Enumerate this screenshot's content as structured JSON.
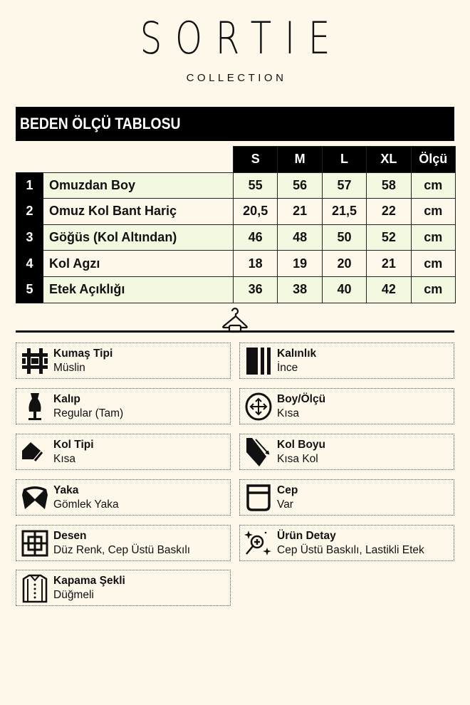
{
  "brand": {
    "name": "SORTIE",
    "sub": "COLLECTION"
  },
  "title": "BEDEN ÖLÇÜ TABLOSU",
  "table": {
    "headers": [
      "S",
      "M",
      "L",
      "XL",
      "Ölçü"
    ],
    "rows": [
      {
        "no": "1",
        "label": "Omuzdan Boy",
        "values": [
          "55",
          "56",
          "57",
          "58"
        ],
        "unit": "cm"
      },
      {
        "no": "2",
        "label": "Omuz Kol Bant Hariç",
        "values": [
          "20,5",
          "21",
          "21,5",
          "22"
        ],
        "unit": "cm"
      },
      {
        "no": "3",
        "label": "Göğüs (Kol Altından)",
        "values": [
          "46",
          "48",
          "50",
          "52"
        ],
        "unit": "cm"
      },
      {
        "no": "4",
        "label": "Kol Agzı",
        "values": [
          "18",
          "19",
          "20",
          "21"
        ],
        "unit": "cm"
      },
      {
        "no": "5",
        "label": "Etek Açıklığı",
        "values": [
          "36",
          "38",
          "40",
          "42"
        ],
        "unit": "cm"
      }
    ]
  },
  "features": [
    {
      "title": "Kumaş Tipi",
      "value": "Müslin",
      "icon": "fabric-weave-icon"
    },
    {
      "title": "Kalınlık",
      "value": "İnce",
      "icon": "thickness-bars-icon"
    },
    {
      "title": "Kalıp",
      "value": "Regular (Tam)",
      "icon": "mannequin-icon"
    },
    {
      "title": "Boy/Ölçü",
      "value": "Kısa",
      "icon": "size-arrows-icon"
    },
    {
      "title": "Kol Tipi",
      "value": "Kısa",
      "icon": "sleeve-icon"
    },
    {
      "title": "Kol Boyu",
      "value": "Kısa Kol",
      "icon": "sleeve-length-icon"
    },
    {
      "title": "Yaka",
      "value": "Gömlek Yaka",
      "icon": "collar-icon"
    },
    {
      "title": "Cep",
      "value": "Var",
      "icon": "pocket-icon"
    },
    {
      "title": "Desen",
      "value": "Düz Renk, Cep Üstü Baskılı",
      "icon": "pattern-icon"
    },
    {
      "title": "Ürün Detay",
      "value": "Cep Üstü Baskılı, Lastikli Etek",
      "icon": "magnifier-sparkle-icon"
    },
    {
      "title": "Kapama Şekli",
      "value": "Düğmeli",
      "icon": "button-shirt-icon"
    }
  ],
  "colors": {
    "background": "#fdf8ea",
    "row_alt": "#f3f8e0",
    "dark": "#000000"
  }
}
